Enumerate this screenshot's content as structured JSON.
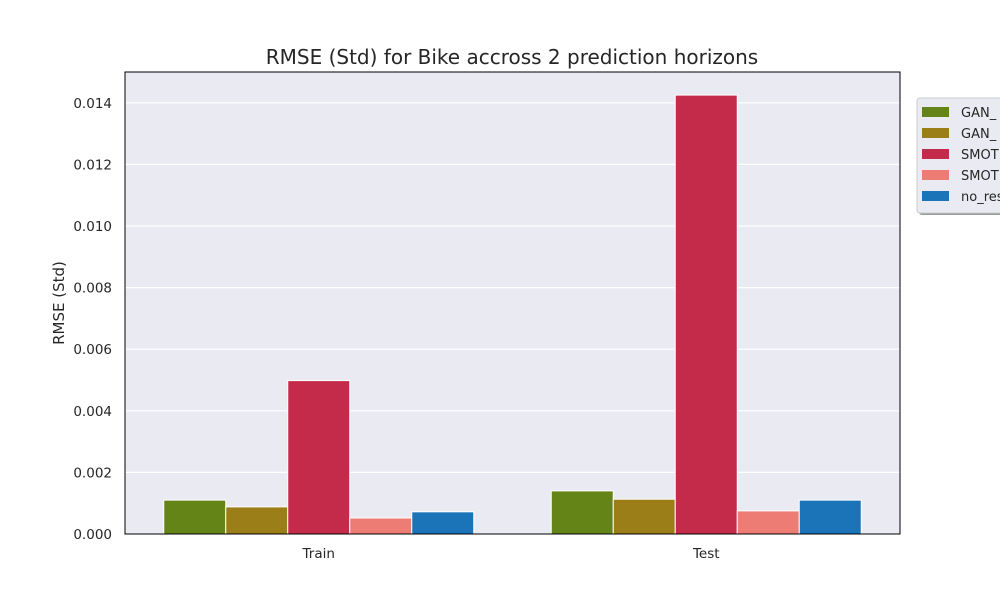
{
  "chart_data": {
    "type": "bar",
    "title": "RMSE (Std) for Bike accross 2 prediction horizons",
    "xlabel": "",
    "ylabel": "RMSE (Std)",
    "categories": [
      "Train",
      "Test"
    ],
    "ylim": [
      0,
      0.015
    ],
    "yticks": [
      "0.000",
      "0.002",
      "0.004",
      "0.006",
      "0.008",
      "0.010",
      "0.012",
      "0.014"
    ],
    "grid": true,
    "legend_position": "right, outside plot area (clipped)",
    "series": [
      {
        "name": "GAN_",
        "color": "#648418",
        "values": [
          0.0011,
          0.0014
        ]
      },
      {
        "name": "GAN_",
        "color": "#9b7e17",
        "values": [
          0.00088,
          0.00113
        ]
      },
      {
        "name": "SMOT",
        "color": "#c42a4a",
        "values": [
          0.00498,
          0.01425
        ]
      },
      {
        "name": "SMOT",
        "color": "#ec7c74",
        "values": [
          0.00052,
          0.00075
        ]
      },
      {
        "name": "no_res",
        "color": "#1a74b7",
        "values": [
          0.00072,
          0.0011
        ]
      }
    ]
  }
}
